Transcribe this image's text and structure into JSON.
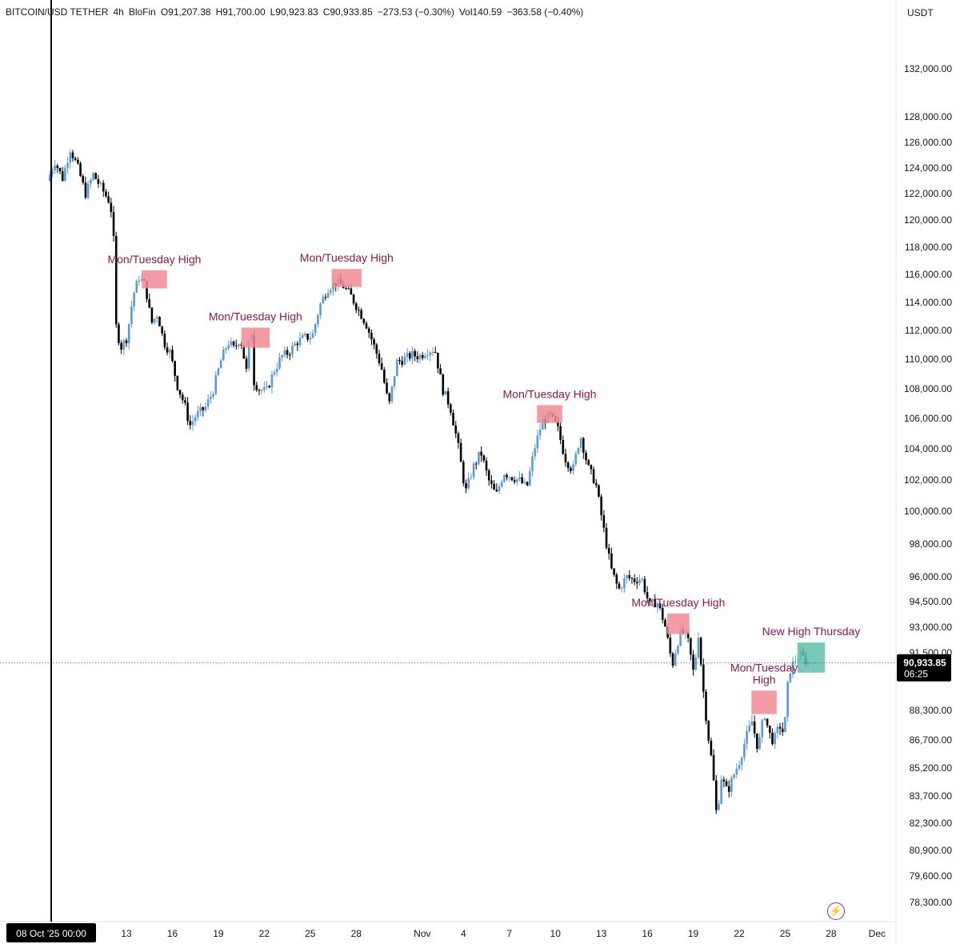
{
  "header": {
    "symbol": "BITCOIN/USD TETHER",
    "interval": "4h",
    "exchange": "BloFin",
    "open": "O91,207.38",
    "high": "H91,700.00",
    "low": "L90,923.83",
    "close": "C90,933.85",
    "change": "−273.53 (−0.30%)",
    "volume": "Vol140.59",
    "volume_change": "−363.58 (−0.40%)"
  },
  "currency": "USDT",
  "icons": {
    "bolt": "lightning-bolt-icon"
  },
  "colors": {
    "candle_down": "#000000",
    "candle_up": "#5b9bd5",
    "zone_high": "#f28b93",
    "zone_new_high": "#5fbfae",
    "annotation_text": "#8b1a4a",
    "price_tag_bg": "#000000"
  },
  "chart_data": {
    "type": "candlestick",
    "title": "",
    "xlabel": "",
    "ylabel": "",
    "ylim": [
      77800,
      134600
    ],
    "y_tick_labels": [
      "132,000.00",
      "128,000.00",
      "126,000.00",
      "124,000.00",
      "122,000.00",
      "120,000.00",
      "118,000.00",
      "116,000.00",
      "114,000.00",
      "112,000.00",
      "110,000.00",
      "108,000.00",
      "106,000.00",
      "104,000.00",
      "102,000.00",
      "100,000.00",
      "98,000.00",
      "96,000.00",
      "94,500.00",
      "93,000.00",
      "91,500.00",
      "88,300.00",
      "86,700.00",
      "85,200.00",
      "83,700.00",
      "82,300.00",
      "80,900.00",
      "79,600.00",
      "78,300.00"
    ],
    "x_tick_labels": [
      "13",
      "16",
      "19",
      "22",
      "25",
      "28",
      "Nov",
      "4",
      "7",
      "10",
      "13",
      "16",
      "19",
      "22",
      "25",
      "28",
      "Dec"
    ],
    "crosshair_date_label": "08 Oct '25   00:00",
    "last_price": {
      "value": 90933.85,
      "label": "90,933.85",
      "countdown": "06:25"
    },
    "price_path": [
      {
        "day": 8.0,
        "price": 123000
      },
      {
        "day": 8.5,
        "price": 124500
      },
      {
        "day": 9.0,
        "price": 123200
      },
      {
        "day": 9.5,
        "price": 125500
      },
      {
        "day": 10.0,
        "price": 124000
      },
      {
        "day": 10.5,
        "price": 122000
      },
      {
        "day": 11.0,
        "price": 123500
      },
      {
        "day": 11.5,
        "price": 122500
      },
      {
        "day": 12.0,
        "price": 121500
      },
      {
        "day": 12.3,
        "price": 120200
      },
      {
        "day": 12.45,
        "price": 112500
      },
      {
        "day": 12.8,
        "price": 110800
      },
      {
        "day": 13.2,
        "price": 111500
      },
      {
        "day": 13.6,
        "price": 114500
      },
      {
        "day": 14.0,
        "price": 115800
      },
      {
        "day": 14.4,
        "price": 115200
      },
      {
        "day": 14.8,
        "price": 112500
      },
      {
        "day": 15.2,
        "price": 113200
      },
      {
        "day": 15.6,
        "price": 111200
      },
      {
        "day": 16.0,
        "price": 110500
      },
      {
        "day": 16.5,
        "price": 108200
      },
      {
        "day": 17.0,
        "price": 106800
      },
      {
        "day": 17.3,
        "price": 105500
      },
      {
        "day": 17.7,
        "price": 106200
      },
      {
        "day": 18.3,
        "price": 106700
      },
      {
        "day": 18.8,
        "price": 107800
      },
      {
        "day": 19.3,
        "price": 109800
      },
      {
        "day": 19.8,
        "price": 111200
      },
      {
        "day": 20.2,
        "price": 110700
      },
      {
        "day": 20.6,
        "price": 111500
      },
      {
        "day": 21.0,
        "price": 109200
      },
      {
        "day": 21.3,
        "price": 112500
      },
      {
        "day": 21.5,
        "price": 108500
      },
      {
        "day": 21.8,
        "price": 108000
      },
      {
        "day": 22.3,
        "price": 107800
      },
      {
        "day": 22.8,
        "price": 109200
      },
      {
        "day": 23.3,
        "price": 110200
      },
      {
        "day": 23.8,
        "price": 110500
      },
      {
        "day": 24.3,
        "price": 111200
      },
      {
        "day": 24.8,
        "price": 111500
      },
      {
        "day": 25.3,
        "price": 111600
      },
      {
        "day": 25.8,
        "price": 113800
      },
      {
        "day": 26.3,
        "price": 115000
      },
      {
        "day": 26.8,
        "price": 115400
      },
      {
        "day": 27.3,
        "price": 115200
      },
      {
        "day": 27.8,
        "price": 114500
      },
      {
        "day": 28.3,
        "price": 113500
      },
      {
        "day": 28.8,
        "price": 112500
      },
      {
        "day": 29.3,
        "price": 111000
      },
      {
        "day": 29.8,
        "price": 109500
      },
      {
        "day": 30.3,
        "price": 106800
      },
      {
        "day": 30.8,
        "price": 109800
      },
      {
        "day": 31.3,
        "price": 110000
      },
      {
        "day": 31.8,
        "price": 110300
      },
      {
        "day": 32.3,
        "price": 110200
      },
      {
        "day": 32.8,
        "price": 110600
      },
      {
        "day": 33.3,
        "price": 110700
      },
      {
        "day": 33.8,
        "price": 108000
      },
      {
        "day": 34.3,
        "price": 106800
      },
      {
        "day": 34.8,
        "price": 104300
      },
      {
        "day": 35.3,
        "price": 101200
      },
      {
        "day": 35.8,
        "price": 102800
      },
      {
        "day": 36.3,
        "price": 103800
      },
      {
        "day": 36.8,
        "price": 102000
      },
      {
        "day": 37.3,
        "price": 101000
      },
      {
        "day": 37.8,
        "price": 102500
      },
      {
        "day": 38.3,
        "price": 102200
      },
      {
        "day": 38.8,
        "price": 102000
      },
      {
        "day": 39.3,
        "price": 101500
      },
      {
        "day": 39.8,
        "price": 104000
      },
      {
        "day": 40.3,
        "price": 105800
      },
      {
        "day": 40.8,
        "price": 106200
      },
      {
        "day": 41.3,
        "price": 105400
      },
      {
        "day": 41.8,
        "price": 103400
      },
      {
        "day": 42.3,
        "price": 102600
      },
      {
        "day": 42.8,
        "price": 104900
      },
      {
        "day": 43.3,
        "price": 102800
      },
      {
        "day": 43.8,
        "price": 101800
      },
      {
        "day": 44.3,
        "price": 99000
      },
      {
        "day": 44.8,
        "price": 96500
      },
      {
        "day": 45.3,
        "price": 95200
      },
      {
        "day": 45.8,
        "price": 96000
      },
      {
        "day": 46.3,
        "price": 95800
      },
      {
        "day": 46.8,
        "price": 95900
      },
      {
        "day": 47.3,
        "price": 94300
      },
      {
        "day": 47.8,
        "price": 94500
      },
      {
        "day": 48.3,
        "price": 93200
      },
      {
        "day": 48.8,
        "price": 90800
      },
      {
        "day": 49.1,
        "price": 92000
      },
      {
        "day": 49.4,
        "price": 92800
      },
      {
        "day": 49.8,
        "price": 92300
      },
      {
        "day": 50.2,
        "price": 90300
      },
      {
        "day": 50.5,
        "price": 92600
      },
      {
        "day": 50.8,
        "price": 89600
      },
      {
        "day": 51.1,
        "price": 87200
      },
      {
        "day": 51.4,
        "price": 85400
      },
      {
        "day": 51.7,
        "price": 82600
      },
      {
        "day": 52.0,
        "price": 84700
      },
      {
        "day": 52.4,
        "price": 83900
      },
      {
        "day": 52.8,
        "price": 84800
      },
      {
        "day": 53.2,
        "price": 85600
      },
      {
        "day": 53.6,
        "price": 86800
      },
      {
        "day": 54.0,
        "price": 87700
      },
      {
        "day": 54.4,
        "price": 86200
      },
      {
        "day": 54.8,
        "price": 88200
      },
      {
        "day": 55.1,
        "price": 87100
      },
      {
        "day": 55.4,
        "price": 86600
      },
      {
        "day": 55.8,
        "price": 87500
      },
      {
        "day": 56.1,
        "price": 87000
      },
      {
        "day": 56.4,
        "price": 90400
      },
      {
        "day": 56.8,
        "price": 91100
      },
      {
        "day": 57.2,
        "price": 91400
      },
      {
        "day": 57.6,
        "price": 90933.85
      }
    ],
    "annotations": [
      {
        "text": "Mon/Tuesday High",
        "day_start": 14.0,
        "day_end": 15.65,
        "price_top": 116300,
        "price_bottom": 115000
      },
      {
        "text": "Mon/Tuesday High",
        "day_start": 20.5,
        "day_end": 22.35,
        "price_top": 112200,
        "price_bottom": 110800
      },
      {
        "text": "Mon/Tuesday High",
        "day_start": 26.4,
        "day_end": 28.35,
        "price_top": 116400,
        "price_bottom": 115100
      },
      {
        "text": "Mon/Tuesday High",
        "day_start": 39.8,
        "day_end": 41.45,
        "price_top": 106900,
        "price_bottom": 105700
      },
      {
        "text": "Mon/Tuesday High",
        "day_start": 48.3,
        "day_end": 49.75,
        "price_top": 93800,
        "price_bottom": 92600
      },
      {
        "text": "Mon/Tuesday High",
        "lines": [
          "Mon/Tuesday",
          "High"
        ],
        "day_start": 53.8,
        "day_end": 55.45,
        "price_top": 89400,
        "price_bottom": 88100
      },
      {
        "text": "New High Thursday",
        "day_start": 56.8,
        "day_end": 58.6,
        "price_top": 92100,
        "price_bottom": 90400
      }
    ]
  }
}
